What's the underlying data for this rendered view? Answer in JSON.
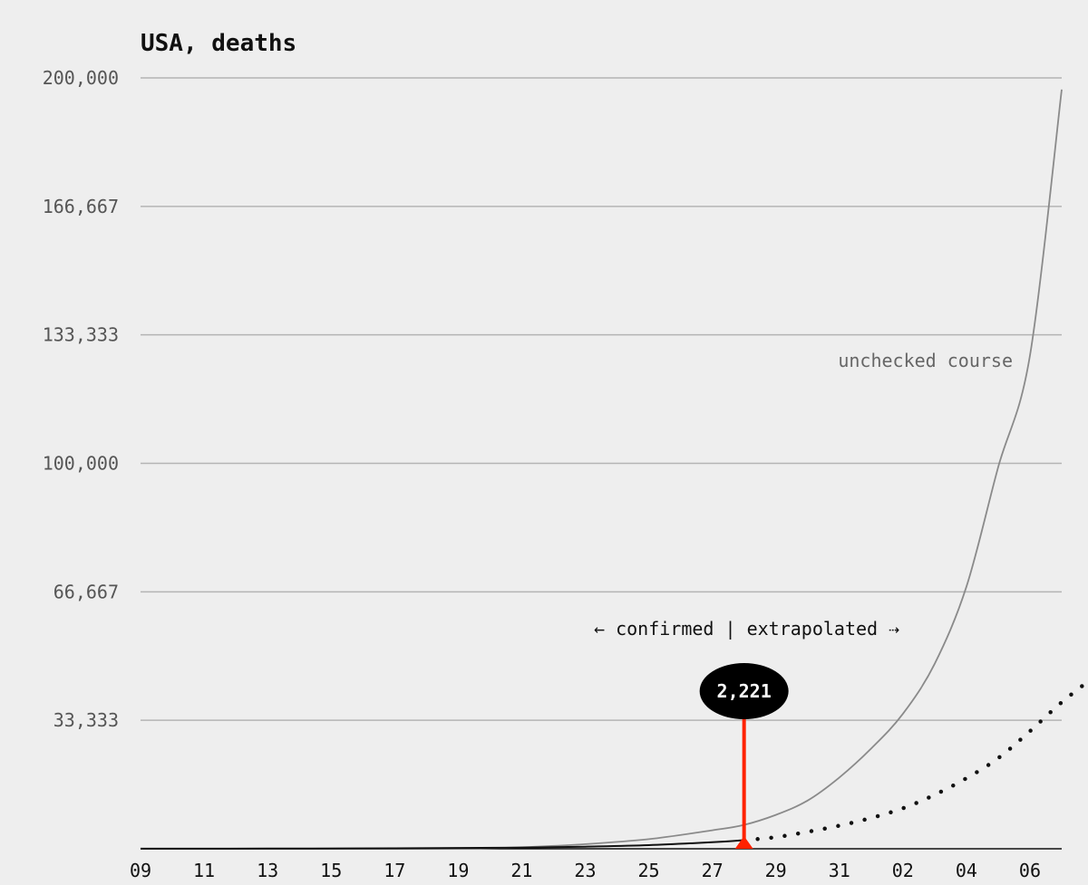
{
  "chart_data": {
    "type": "line",
    "title": "USA, deaths",
    "xlabel": "",
    "ylabel": "",
    "ylim": [
      0,
      200000
    ],
    "yticks": [
      0,
      33333,
      66667,
      100000,
      133333,
      166667,
      200000
    ],
    "ytick_labels": [
      "",
      "33,333",
      "66,667",
      "100,000",
      "133,333",
      "166,667",
      "200,000"
    ],
    "x_start": "2020-03-09",
    "x_end": "2020-04-07",
    "xtick_labels": [
      {
        "date": "2020-03-09",
        "label": "09"
      },
      {
        "date": "2020-03-11",
        "label": "11"
      },
      {
        "date": "2020-03-13",
        "label": "13"
      },
      {
        "date": "2020-03-15",
        "label": "15"
      },
      {
        "date": "2020-03-17",
        "label": "17"
      },
      {
        "date": "2020-03-19",
        "label": "19"
      },
      {
        "date": "2020-03-21",
        "label": "21"
      },
      {
        "date": "2020-03-23",
        "label": "23"
      },
      {
        "date": "2020-03-25",
        "label": "25"
      },
      {
        "date": "2020-03-27",
        "label": "27"
      },
      {
        "date": "2020-03-29",
        "label": "29"
      },
      {
        "date": "2020-03-31",
        "label": "31"
      },
      {
        "date": "2020-04-02",
        "label": "02"
      },
      {
        "date": "2020-04-04",
        "label": "04"
      },
      {
        "date": "2020-04-06",
        "label": "06"
      }
    ],
    "grid": true,
    "series": [
      {
        "name": "unchecked course",
        "style": "thin-gray",
        "color": "#8a8a8a",
        "x": [
          "2020-03-09",
          "2020-03-13",
          "2020-03-17",
          "2020-03-19",
          "2020-03-21",
          "2020-03-23",
          "2020-03-25",
          "2020-03-27",
          "2020-03-28",
          "2020-03-29",
          "2020-03-30",
          "2020-03-31",
          "2020-04-01",
          "2020-04-02",
          "2020-04-03",
          "2020-04-04",
          "2020-04-05",
          "2020-04-06",
          "2020-04-07"
        ],
        "y": [
          0,
          0,
          0,
          0,
          400,
          1200,
          2500,
          4800,
          6200,
          8800,
          12500,
          18500,
          26000,
          35000,
          48000,
          68000,
          99000,
          128000,
          197000
        ]
      },
      {
        "name": "",
        "style": "confirmed",
        "color": "#111111",
        "x": [
          "2020-03-09",
          "2020-03-13",
          "2020-03-17",
          "2020-03-19",
          "2020-03-21",
          "2020-03-23",
          "2020-03-25",
          "2020-03-27",
          "2020-03-28"
        ],
        "y": [
          22,
          41,
          108,
          206,
          302,
          550,
          942,
          1700,
          2221
        ]
      },
      {
        "name": "",
        "style": "extrapolated",
        "color": "#111111",
        "x": [
          "2020-03-28",
          "2020-03-29",
          "2020-03-30",
          "2020-03-31",
          "2020-04-01",
          "2020-04-02",
          "2020-04-03",
          "2020-04-04",
          "2020-04-05",
          "2020-04-06",
          "2020-04-07",
          "2020-04-08"
        ],
        "y": [
          2221,
          3000,
          4400,
          6000,
          8000,
          10500,
          14000,
          18300,
          23500,
          30500,
          38000,
          44500
        ]
      }
    ],
    "marker": {
      "date": "2020-03-28",
      "value": 2221,
      "label": "2,221",
      "color": "#ff2200"
    },
    "annotations": {
      "unchecked_label": "unchecked course",
      "divider_label": "← confirmed | extrapolated ⇢"
    }
  }
}
